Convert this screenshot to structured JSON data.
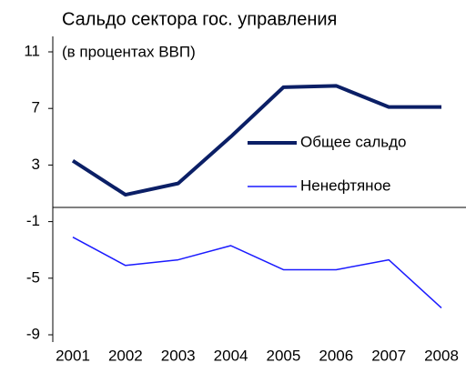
{
  "chart_data": {
    "type": "line",
    "title": "Сальдо сектора гос. управления",
    "subtitle": "(в процентах ВВП)",
    "categories": [
      "2001",
      "2002",
      "2003",
      "2004",
      "2005",
      "2006",
      "2007",
      "2008"
    ],
    "series": [
      {
        "name": "Общее сальдо",
        "color": "#0b1f66",
        "values": [
          3.3,
          0.9,
          1.7,
          5.0,
          8.5,
          8.6,
          7.1,
          7.1
        ]
      },
      {
        "name": "Ненефтяное",
        "color": "#1a1aff",
        "values": [
          -2.1,
          -4.1,
          -3.7,
          -2.7,
          -4.4,
          -4.4,
          -3.7,
          -7.1
        ]
      }
    ],
    "ylim": [
      -9,
      11
    ],
    "yticks": [
      -9,
      -5,
      -1,
      3,
      7,
      11
    ],
    "grid": false,
    "legend": "right"
  }
}
